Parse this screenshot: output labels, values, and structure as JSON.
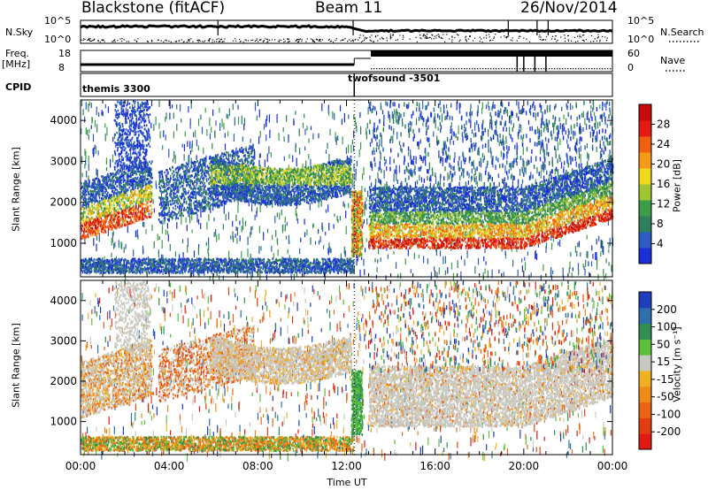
{
  "header": {
    "station": "Blackstone (fitACF)",
    "beam": "Beam 11",
    "date": "26/Nov/2014"
  },
  "top_panel": {
    "left_labels": [
      "N.Sky",
      "Freq.",
      "[MHz]",
      "CPID"
    ],
    "right_labels": [
      "N.Search",
      "Nave"
    ],
    "nsky_ticks": [
      "10^5",
      "10^0"
    ],
    "nsearch_ticks": [
      "10^5",
      "10^0"
    ],
    "freq_ticks": [
      "18",
      "8"
    ],
    "nave_ticks": [
      "60",
      "0"
    ],
    "cpid_segments": [
      {
        "label": "themis 3300",
        "start_hour": 0
      },
      {
        "label": "twofsound -3501",
        "start_hour": 12.4
      }
    ]
  },
  "colors": {
    "power_scale": [
      "#1a2fd8",
      "#2e5cc2",
      "#2f7f5a",
      "#3a9d48",
      "#9ec630",
      "#f2d81c",
      "#f59a16",
      "#f06010",
      "#e51a12",
      "#c80a0a"
    ],
    "velocity_scale": [
      "#1f3fbf",
      "#2f6fb0",
      "#2f8f50",
      "#5bbf3a",
      "#c8c8c0",
      "#f0b020",
      "#f08a18",
      "#e86414",
      "#e43c12",
      "#e01a10"
    ]
  },
  "chart_data": [
    {
      "type": "heatmap",
      "ylabel": "Slant Range [km]",
      "xlabel": "Time UT",
      "xticks": [
        "00:00",
        "04:00",
        "08:00",
        "12:00",
        "16:00",
        "20:00",
        "00:00"
      ],
      "yticks": [
        "1000",
        "2000",
        "3000",
        "4000"
      ],
      "x_range_hours": [
        0,
        24
      ],
      "y_range_km": [
        180,
        4500
      ],
      "colorbar": {
        "label": "Power [dB]",
        "ticks": [
          "4",
          "8",
          "12",
          "16",
          "20",
          "24",
          "28"
        ],
        "range": [
          0,
          32
        ]
      }
    },
    {
      "type": "heatmap",
      "ylabel": "Slant Range [km]",
      "xlabel": "Time UT",
      "xticks": [
        "00:00",
        "04:00",
        "08:00",
        "12:00",
        "16:00",
        "20:00",
        "00:00"
      ],
      "yticks": [
        "1000",
        "2000",
        "3000",
        "4000"
      ],
      "x_range_hours": [
        0,
        24
      ],
      "y_range_km": [
        180,
        4500
      ],
      "colorbar": {
        "label": "Velocity [m s⁻¹]",
        "ticks": [
          "200",
          "100",
          "50",
          "15",
          "-15",
          "-50",
          "-100",
          "-200"
        ]
      }
    }
  ]
}
